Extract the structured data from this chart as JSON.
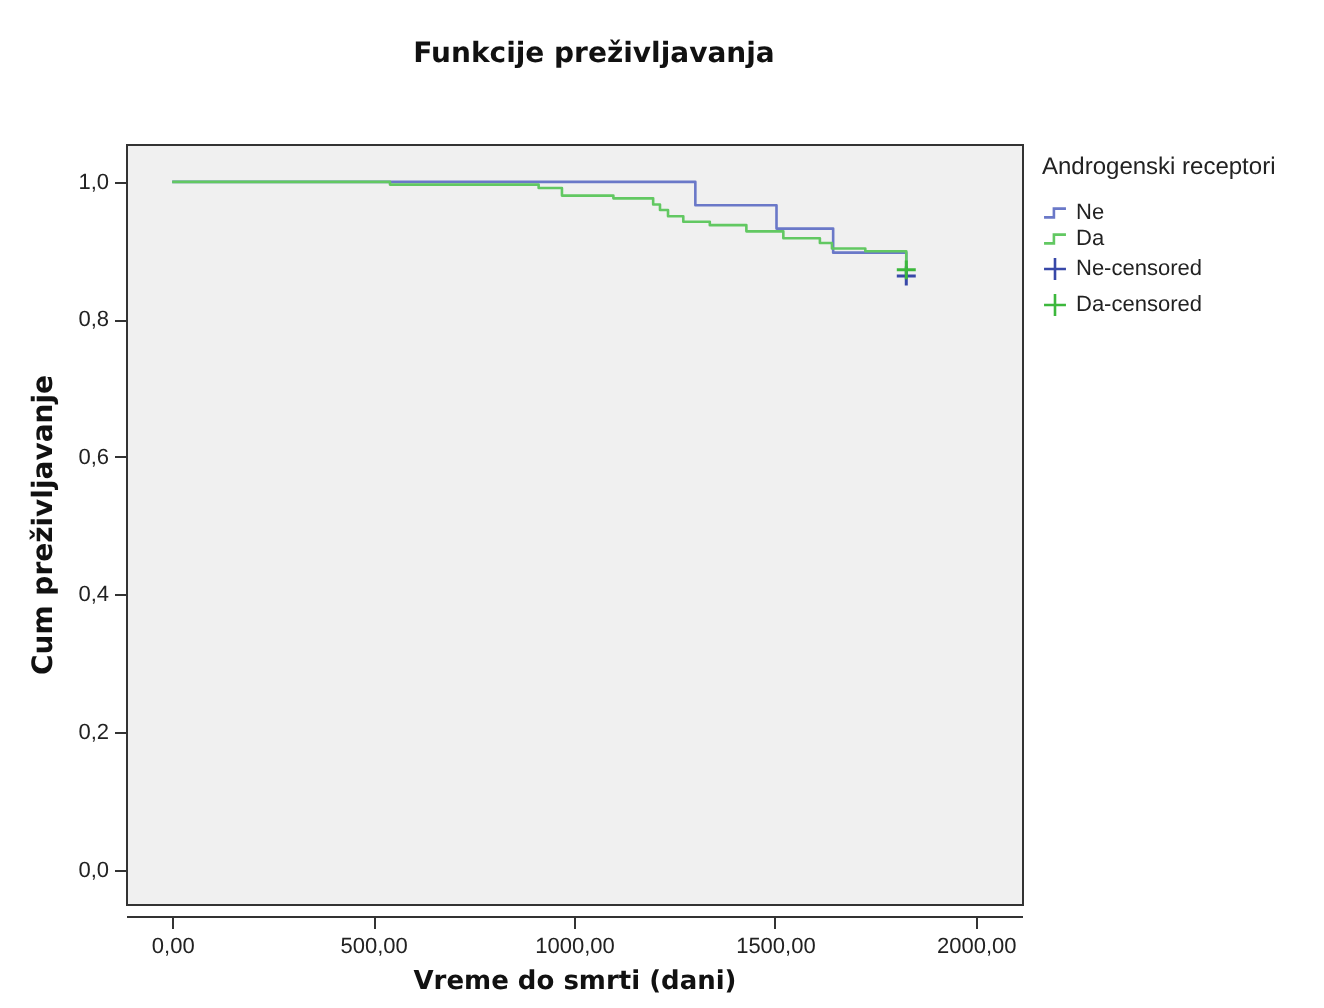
{
  "chart_data": {
    "type": "step",
    "title": "Funkcije preživljavanja",
    "xlabel": "Vreme do smrti (dani)",
    "ylabel": "Cum preživljavanje",
    "legend_title": "Androgenski receptori",
    "legend": "top right",
    "xlim": [
      -115,
      2115
    ],
    "xticks": [
      {
        "value": 0,
        "label": "0,00"
      },
      {
        "value": 500,
        "label": "500,00"
      },
      {
        "value": 1000,
        "label": "1000,00"
      },
      {
        "value": 1500,
        "label": "1500,00"
      },
      {
        "value": 2000,
        "label": "2000,00"
      }
    ],
    "ylim": [
      -0.05,
      1.055
    ],
    "yticks": [
      {
        "value": 0,
        "label": "0,0"
      },
      {
        "value": 0.2,
        "label": "0,2"
      },
      {
        "value": 0.4,
        "label": "0,4"
      },
      {
        "value": 0.6,
        "label": "0,6"
      },
      {
        "value": 0.8,
        "label": "0,8"
      },
      {
        "value": 1,
        "label": "1,0"
      }
    ],
    "grid": false,
    "series": [
      {
        "name": "Ne",
        "color": "#6a78c8",
        "x": [
          0,
          1302,
          1504,
          1645,
          1827
        ],
        "values": [
          1.0,
          0.966,
          0.932,
          0.897,
          0.863
        ]
      },
      {
        "name": "Da",
        "color": "#62c862",
        "x": [
          0,
          542,
          912,
          970,
          1098,
          1197,
          1214,
          1234,
          1272,
          1338,
          1429,
          1521,
          1612,
          1642,
          1725,
          1827
        ],
        "values": [
          1.0,
          0.996,
          0.991,
          0.98,
          0.976,
          0.967,
          0.959,
          0.95,
          0.942,
          0.937,
          0.928,
          0.918,
          0.911,
          0.903,
          0.899,
          0.872
        ]
      },
      {
        "name": "Ne-censored",
        "type": "scatter",
        "marker": "cross",
        "color": "#3848a8",
        "x": [
          1827
        ],
        "values": [
          0.863
        ]
      },
      {
        "name": "Da-censored",
        "type": "scatter",
        "marker": "cross",
        "color": "#3cb83c",
        "x": [
          1827
        ],
        "values": [
          0.872
        ]
      }
    ]
  }
}
